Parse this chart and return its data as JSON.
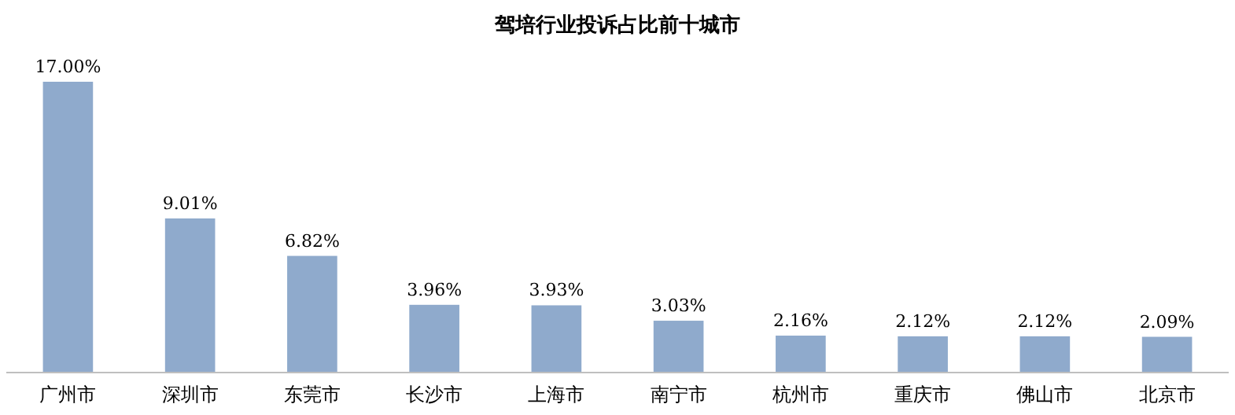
{
  "chart_data": {
    "type": "bar",
    "title": "驾培行业投诉占比前十城市",
    "categories": [
      "广州市",
      "深圳市",
      "东莞市",
      "长沙市",
      "上海市",
      "南宁市",
      "杭州市",
      "重庆市",
      "佛山市",
      "北京市"
    ],
    "values": [
      17.0,
      9.01,
      6.82,
      3.96,
      3.93,
      3.03,
      2.16,
      2.12,
      2.12,
      2.09
    ],
    "value_labels": [
      "17.00%",
      "9.01%",
      "6.82%",
      "3.96%",
      "3.93%",
      "3.03%",
      "2.16%",
      "2.12%",
      "2.12%",
      "2.09%"
    ],
    "color": "#8faacc"
  }
}
